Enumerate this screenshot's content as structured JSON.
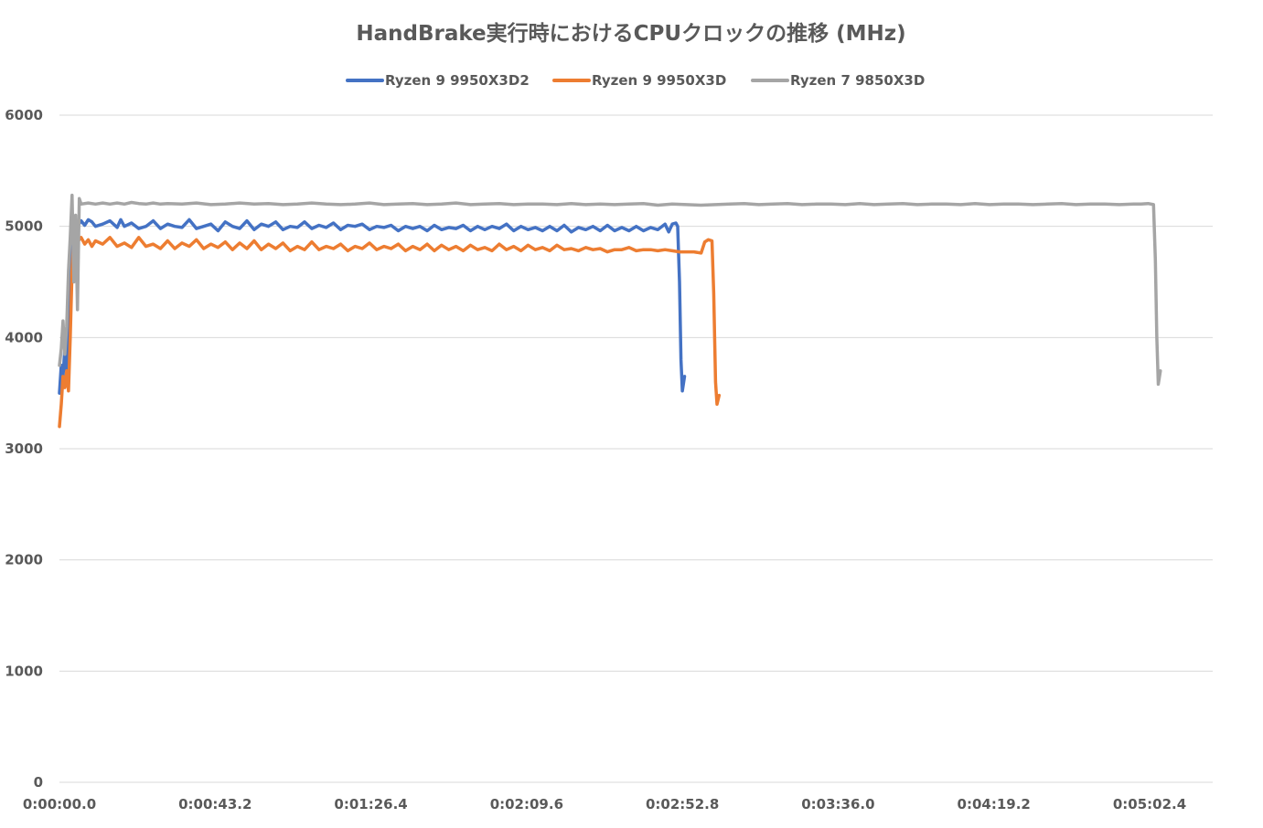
{
  "chart_data": {
    "type": "line",
    "title": "HandBrake実行時におけるCPUクロックの推移 (MHz)",
    "xlabel": "",
    "ylabel": "",
    "x_unit": "seconds",
    "xlim": [
      0,
      315
    ],
    "ylim": [
      0,
      6000
    ],
    "y_ticks": [
      0,
      1000,
      2000,
      3000,
      4000,
      5000,
      6000
    ],
    "y_tick_labels": [
      "0",
      "1000",
      "2000",
      "3000",
      "4000",
      "5000",
      "6000"
    ],
    "x_ticks": [
      0,
      43.2,
      86.4,
      129.6,
      172.8,
      216,
      259.2,
      302.4
    ],
    "x_tick_labels": [
      "0:00:00.0",
      "0:00:43.2",
      "0:01:26.4",
      "0:02:09.6",
      "0:02:52.8",
      "0:03:36.0",
      "0:04:19.2",
      "0:05:02.4"
    ],
    "grid": "horizontal",
    "legend_position": "top",
    "series": [
      {
        "name": "Ryzen 9 9950X3D2",
        "color": "#4472C4",
        "points": [
          [
            0,
            3500
          ],
          [
            0.5,
            3750
          ],
          [
            1,
            3650
          ],
          [
            1.5,
            3900
          ],
          [
            2,
            3700
          ],
          [
            2.5,
            4100
          ],
          [
            3,
            4500
          ],
          [
            3.5,
            5050
          ],
          [
            4,
            4900
          ],
          [
            4.5,
            5050
          ],
          [
            5,
            5000
          ],
          [
            6,
            5050
          ],
          [
            7,
            5010
          ],
          [
            8,
            5060
          ],
          [
            9,
            5040
          ],
          [
            10,
            5000
          ],
          [
            12,
            5020
          ],
          [
            14,
            5050
          ],
          [
            16,
            4990
          ],
          [
            17,
            5060
          ],
          [
            18,
            5000
          ],
          [
            20,
            5030
          ],
          [
            22,
            4980
          ],
          [
            24,
            5000
          ],
          [
            26,
            5050
          ],
          [
            28,
            4980
          ],
          [
            30,
            5020
          ],
          [
            32,
            5000
          ],
          [
            34,
            4990
          ],
          [
            36,
            5060
          ],
          [
            38,
            4980
          ],
          [
            40,
            5000
          ],
          [
            42,
            5020
          ],
          [
            44,
            4960
          ],
          [
            46,
            5040
          ],
          [
            48,
            5000
          ],
          [
            50,
            4980
          ],
          [
            52,
            5050
          ],
          [
            54,
            4970
          ],
          [
            56,
            5020
          ],
          [
            58,
            5000
          ],
          [
            60,
            5040
          ],
          [
            62,
            4970
          ],
          [
            64,
            5000
          ],
          [
            66,
            4990
          ],
          [
            68,
            5040
          ],
          [
            70,
            4980
          ],
          [
            72,
            5010
          ],
          [
            74,
            4990
          ],
          [
            76,
            5030
          ],
          [
            78,
            4970
          ],
          [
            80,
            5010
          ],
          [
            82,
            5000
          ],
          [
            84,
            5020
          ],
          [
            86,
            4970
          ],
          [
            88,
            5000
          ],
          [
            90,
            4990
          ],
          [
            92,
            5010
          ],
          [
            94,
            4960
          ],
          [
            96,
            5000
          ],
          [
            98,
            4980
          ],
          [
            100,
            5000
          ],
          [
            102,
            4960
          ],
          [
            104,
            5010
          ],
          [
            106,
            4970
          ],
          [
            108,
            4990
          ],
          [
            110,
            4980
          ],
          [
            112,
            5010
          ],
          [
            114,
            4960
          ],
          [
            116,
            5000
          ],
          [
            118,
            4970
          ],
          [
            120,
            5000
          ],
          [
            122,
            4980
          ],
          [
            124,
            5020
          ],
          [
            126,
            4960
          ],
          [
            128,
            5000
          ],
          [
            130,
            4970
          ],
          [
            132,
            4990
          ],
          [
            134,
            4960
          ],
          [
            136,
            5000
          ],
          [
            138,
            4960
          ],
          [
            140,
            5010
          ],
          [
            142,
            4950
          ],
          [
            144,
            4990
          ],
          [
            146,
            4970
          ],
          [
            148,
            5000
          ],
          [
            150,
            4960
          ],
          [
            152,
            5010
          ],
          [
            154,
            4960
          ],
          [
            156,
            4990
          ],
          [
            158,
            4960
          ],
          [
            160,
            5000
          ],
          [
            162,
            4960
          ],
          [
            164,
            4990
          ],
          [
            166,
            4970
          ],
          [
            168,
            5020
          ],
          [
            169,
            4950
          ],
          [
            170,
            5020
          ],
          [
            171,
            5030
          ],
          [
            171.5,
            5000
          ],
          [
            172,
            4500
          ],
          [
            172.4,
            3800
          ],
          [
            172.8,
            3520
          ],
          [
            173.4,
            3650
          ]
        ]
      },
      {
        "name": "Ryzen 9 9950X3D",
        "color": "#ED7D31",
        "points": [
          [
            0,
            3200
          ],
          [
            0.5,
            3400
          ],
          [
            1,
            3650
          ],
          [
            1.5,
            3550
          ],
          [
            2,
            3700
          ],
          [
            2.5,
            3520
          ],
          [
            3,
            4000
          ],
          [
            3.5,
            4600
          ],
          [
            4,
            4900
          ],
          [
            4.5,
            4800
          ],
          [
            5,
            4860
          ],
          [
            6,
            4900
          ],
          [
            7,
            4840
          ],
          [
            8,
            4880
          ],
          [
            9,
            4820
          ],
          [
            10,
            4870
          ],
          [
            12,
            4840
          ],
          [
            14,
            4900
          ],
          [
            16,
            4820
          ],
          [
            18,
            4850
          ],
          [
            20,
            4810
          ],
          [
            22,
            4900
          ],
          [
            24,
            4820
          ],
          [
            26,
            4840
          ],
          [
            28,
            4800
          ],
          [
            30,
            4870
          ],
          [
            32,
            4800
          ],
          [
            34,
            4850
          ],
          [
            36,
            4820
          ],
          [
            38,
            4880
          ],
          [
            40,
            4800
          ],
          [
            42,
            4840
          ],
          [
            44,
            4810
          ],
          [
            46,
            4860
          ],
          [
            48,
            4790
          ],
          [
            50,
            4850
          ],
          [
            52,
            4800
          ],
          [
            54,
            4870
          ],
          [
            56,
            4790
          ],
          [
            58,
            4840
          ],
          [
            60,
            4800
          ],
          [
            62,
            4850
          ],
          [
            64,
            4780
          ],
          [
            66,
            4820
          ],
          [
            68,
            4790
          ],
          [
            70,
            4860
          ],
          [
            72,
            4790
          ],
          [
            74,
            4820
          ],
          [
            76,
            4800
          ],
          [
            78,
            4840
          ],
          [
            80,
            4780
          ],
          [
            82,
            4820
          ],
          [
            84,
            4800
          ],
          [
            86,
            4850
          ],
          [
            88,
            4790
          ],
          [
            90,
            4820
          ],
          [
            92,
            4800
          ],
          [
            94,
            4840
          ],
          [
            96,
            4780
          ],
          [
            98,
            4820
          ],
          [
            100,
            4790
          ],
          [
            102,
            4840
          ],
          [
            104,
            4780
          ],
          [
            106,
            4830
          ],
          [
            108,
            4790
          ],
          [
            110,
            4820
          ],
          [
            112,
            4780
          ],
          [
            114,
            4830
          ],
          [
            116,
            4790
          ],
          [
            118,
            4810
          ],
          [
            120,
            4780
          ],
          [
            122,
            4840
          ],
          [
            124,
            4790
          ],
          [
            126,
            4820
          ],
          [
            128,
            4780
          ],
          [
            130,
            4830
          ],
          [
            132,
            4790
          ],
          [
            134,
            4810
          ],
          [
            136,
            4780
          ],
          [
            138,
            4830
          ],
          [
            140,
            4790
          ],
          [
            142,
            4800
          ],
          [
            144,
            4780
          ],
          [
            146,
            4810
          ],
          [
            148,
            4790
          ],
          [
            150,
            4800
          ],
          [
            152,
            4770
          ],
          [
            154,
            4790
          ],
          [
            156,
            4790
          ],
          [
            158,
            4810
          ],
          [
            160,
            4780
          ],
          [
            162,
            4790
          ],
          [
            164,
            4790
          ],
          [
            166,
            4780
          ],
          [
            168,
            4790
          ],
          [
            170,
            4780
          ],
          [
            172,
            4770
          ],
          [
            174,
            4770
          ],
          [
            176,
            4770
          ],
          [
            178,
            4760
          ],
          [
            179,
            4860
          ],
          [
            180,
            4880
          ],
          [
            181,
            4870
          ],
          [
            181.5,
            4400
          ],
          [
            182,
            3600
          ],
          [
            182.4,
            3400
          ],
          [
            183,
            3480
          ]
        ]
      },
      {
        "name": "Ryzen 7 9850X3D",
        "color": "#A5A5A5",
        "points": [
          [
            0,
            3750
          ],
          [
            0.5,
            3900
          ],
          [
            1,
            4150
          ],
          [
            1.5,
            3850
          ],
          [
            2,
            4100
          ],
          [
            2.5,
            4600
          ],
          [
            3,
            4900
          ],
          [
            3.5,
            5280
          ],
          [
            4,
            4500
          ],
          [
            4.5,
            5100
          ],
          [
            5,
            4250
          ],
          [
            5.5,
            5250
          ],
          [
            6,
            5200
          ],
          [
            8,
            5210
          ],
          [
            10,
            5200
          ],
          [
            12,
            5210
          ],
          [
            14,
            5200
          ],
          [
            16,
            5210
          ],
          [
            18,
            5200
          ],
          [
            20,
            5215
          ],
          [
            22,
            5205
          ],
          [
            24,
            5200
          ],
          [
            26,
            5210
          ],
          [
            28,
            5200
          ],
          [
            30,
            5205
          ],
          [
            34,
            5200
          ],
          [
            38,
            5210
          ],
          [
            42,
            5195
          ],
          [
            46,
            5200
          ],
          [
            50,
            5210
          ],
          [
            54,
            5200
          ],
          [
            58,
            5205
          ],
          [
            62,
            5195
          ],
          [
            66,
            5200
          ],
          [
            70,
            5210
          ],
          [
            74,
            5200
          ],
          [
            78,
            5195
          ],
          [
            82,
            5200
          ],
          [
            86,
            5210
          ],
          [
            90,
            5195
          ],
          [
            94,
            5200
          ],
          [
            98,
            5205
          ],
          [
            102,
            5195
          ],
          [
            106,
            5200
          ],
          [
            110,
            5210
          ],
          [
            114,
            5195
          ],
          [
            118,
            5200
          ],
          [
            122,
            5205
          ],
          [
            126,
            5195
          ],
          [
            130,
            5200
          ],
          [
            134,
            5200
          ],
          [
            138,
            5195
          ],
          [
            142,
            5205
          ],
          [
            146,
            5195
          ],
          [
            150,
            5200
          ],
          [
            154,
            5195
          ],
          [
            158,
            5200
          ],
          [
            162,
            5205
          ],
          [
            166,
            5190
          ],
          [
            170,
            5200
          ],
          [
            174,
            5195
          ],
          [
            178,
            5190
          ],
          [
            182,
            5195
          ],
          [
            186,
            5200
          ],
          [
            190,
            5205
          ],
          [
            194,
            5195
          ],
          [
            198,
            5200
          ],
          [
            202,
            5205
          ],
          [
            206,
            5195
          ],
          [
            210,
            5200
          ],
          [
            214,
            5200
          ],
          [
            218,
            5195
          ],
          [
            222,
            5205
          ],
          [
            226,
            5195
          ],
          [
            230,
            5200
          ],
          [
            234,
            5205
          ],
          [
            238,
            5195
          ],
          [
            242,
            5200
          ],
          [
            246,
            5200
          ],
          [
            250,
            5195
          ],
          [
            254,
            5205
          ],
          [
            258,
            5195
          ],
          [
            262,
            5200
          ],
          [
            266,
            5200
          ],
          [
            270,
            5195
          ],
          [
            274,
            5200
          ],
          [
            278,
            5205
          ],
          [
            282,
            5195
          ],
          [
            286,
            5200
          ],
          [
            290,
            5200
          ],
          [
            294,
            5195
          ],
          [
            298,
            5200
          ],
          [
            300,
            5200
          ],
          [
            302,
            5205
          ],
          [
            303.5,
            5195
          ],
          [
            304,
            4700
          ],
          [
            304.4,
            4000
          ],
          [
            304.8,
            3580
          ],
          [
            305.4,
            3700
          ]
        ]
      }
    ]
  }
}
